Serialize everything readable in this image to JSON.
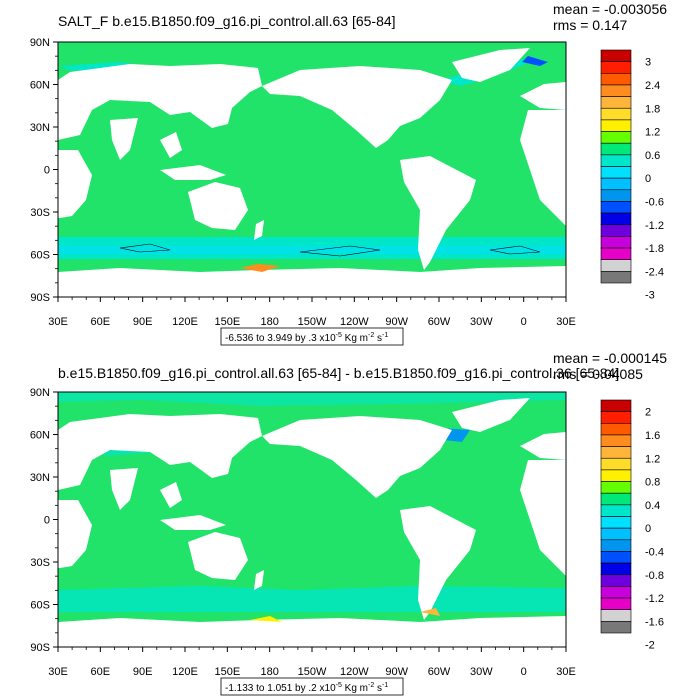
{
  "colors": {
    "ocean_mid": "#22e36a",
    "ocean_neg1": "#00e6c8",
    "ocean_neg2": "#00e0ff",
    "ocean_neg3": "#00b4f0",
    "land": "#ffffff",
    "frame": "#000000"
  },
  "chart_data": [
    {
      "type": "heatmap",
      "title": "SALT_F b.e15.B1850.f09_g16.pi_control.all.63 [65-84]",
      "stats": {
        "mean": "mean = -0.003056",
        "rms": "rms = 0.147"
      },
      "x_ticks": [
        "30E",
        "60E",
        "90E",
        "120E",
        "150E",
        "180",
        "150W",
        "120W",
        "90W",
        "60W",
        "30W",
        "0",
        "30E"
      ],
      "y_ticks": [
        "90N",
        "60N",
        "30N",
        "0",
        "30S",
        "60S",
        "90S"
      ],
      "xlim": [
        30,
        390
      ],
      "ylim": [
        -90,
        90
      ],
      "caption": {
        "text": "-6.536 to 3.949 by .3 x10",
        "sup1": "-5",
        "units": " Kg m",
        "sup2": "-2",
        "tail": " s",
        "sup3": "-1"
      },
      "colorbar": {
        "labels": [
          "3",
          "2.4",
          "1.8",
          "1.2",
          "0.6",
          "0",
          "-0.6",
          "-1.2",
          "-1.8",
          "-2.4",
          "-3"
        ],
        "colors": [
          "#c80000",
          "#ff1e00",
          "#ff5a00",
          "#ff8c1e",
          "#ffb43c",
          "#ffdc28",
          "#fff000",
          "#64ff00",
          "#00e878",
          "#00e6c8",
          "#00e0ff",
          "#00c0ff",
          "#0096f0",
          "#0050ff",
          "#0000e6",
          "#6e00dc",
          "#c800dc",
          "#e600c8",
          "#d2d2d2",
          "#787878"
        ]
      }
    },
    {
      "type": "heatmap",
      "title": "b.e15.B1850.f09_g16.pi_control.all.63 [65-84] - b.e15.B1850.f09_g16.pi_control.36 [65-84]",
      "stats": {
        "mean": "mean = -0.000145",
        "rms": "rms = 0.04085"
      },
      "x_ticks": [
        "30E",
        "60E",
        "90E",
        "120E",
        "150E",
        "180",
        "150W",
        "120W",
        "90W",
        "60W",
        "30W",
        "0",
        "30E"
      ],
      "y_ticks": [
        "90N",
        "60N",
        "30N",
        "0",
        "30S",
        "60S",
        "90S"
      ],
      "xlim": [
        30,
        390
      ],
      "ylim": [
        -90,
        90
      ],
      "caption": {
        "text": "-1.133 to 1.051 by .2 x10",
        "sup1": "-5",
        "units": " Kg m",
        "sup2": "-2",
        "tail": " s",
        "sup3": "-1"
      },
      "colorbar": {
        "labels": [
          "2",
          "1.6",
          "1.2",
          "0.8",
          "0.4",
          "0",
          "-0.4",
          "-0.8",
          "-1.2",
          "-1.6",
          "-2"
        ],
        "colors": [
          "#c80000",
          "#ff1e00",
          "#ff5a00",
          "#ff8c1e",
          "#ffb43c",
          "#ffdc28",
          "#fff000",
          "#64ff00",
          "#00e878",
          "#00e6c8",
          "#00e0ff",
          "#00c0ff",
          "#0096f0",
          "#0050ff",
          "#0000e6",
          "#6e00dc",
          "#c800dc",
          "#e600c8",
          "#d2d2d2",
          "#787878"
        ]
      }
    }
  ]
}
